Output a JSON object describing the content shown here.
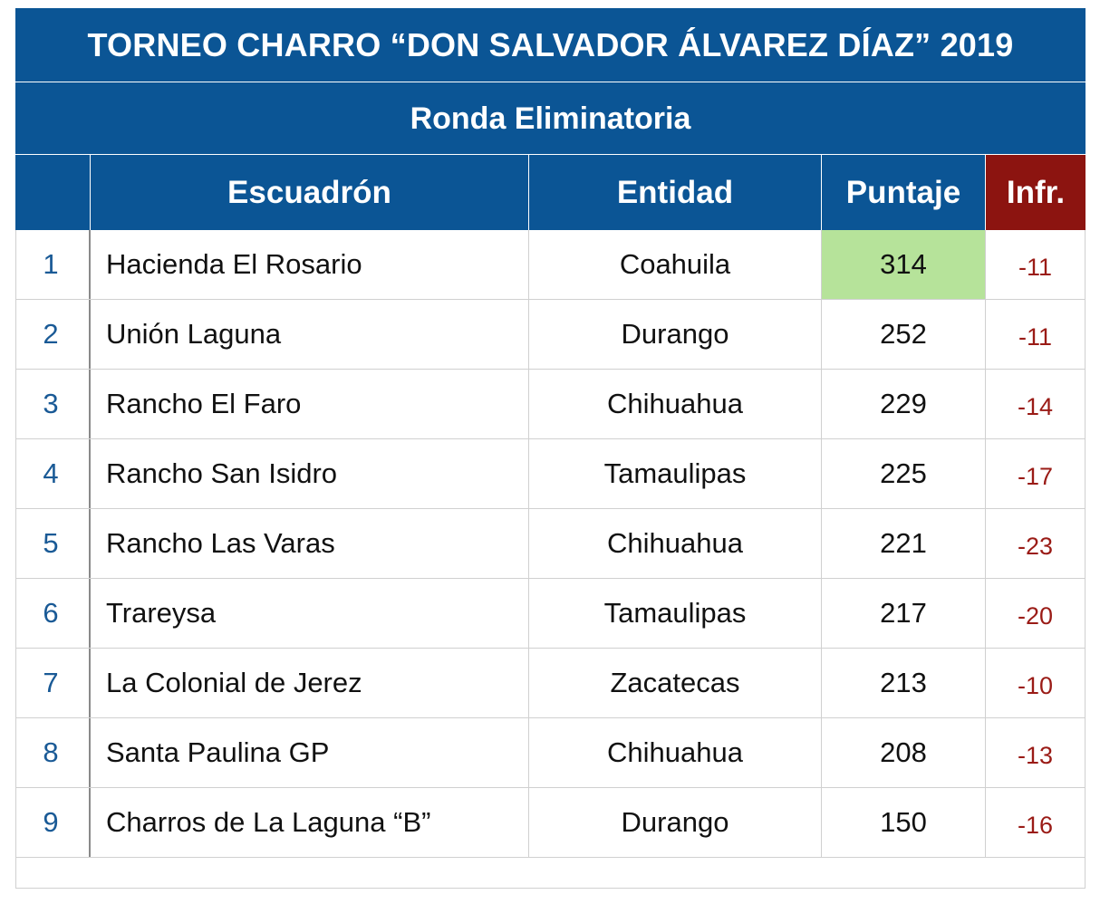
{
  "title": "TORNEO CHARRO “DON SALVADOR ÁLVAREZ DÍAZ” 2019",
  "subtitle": "Ronda Eliminatoria",
  "headers": {
    "rank": "",
    "team": "Escuadrón",
    "state": "Entidad",
    "score": "Puntaje",
    "infr": "Infr."
  },
  "colors": {
    "header_blue": "#0b5595",
    "infr_header_red": "#8c1410",
    "leader_highlight_green": "#b6e39a",
    "rank_text_blue": "#1a5a96",
    "infr_text_red": "#9a1b16"
  },
  "rows": [
    {
      "rank": "1",
      "team": "Hacienda El Rosario",
      "state": "Coahuila",
      "score": "314",
      "infr": "-11",
      "highlight": true
    },
    {
      "rank": "2",
      "team": "Unión Laguna",
      "state": "Durango",
      "score": "252",
      "infr": "-11",
      "highlight": false
    },
    {
      "rank": "3",
      "team": "Rancho El Faro",
      "state": "Chihuahua",
      "score": "229",
      "infr": "-14",
      "highlight": false
    },
    {
      "rank": "4",
      "team": "Rancho San Isidro",
      "state": "Tamaulipas",
      "score": "225",
      "infr": "-17",
      "highlight": false
    },
    {
      "rank": "5",
      "team": "Rancho Las Varas",
      "state": "Chihuahua",
      "score": "221",
      "infr": "-23",
      "highlight": false
    },
    {
      "rank": "6",
      "team": "Trareysa",
      "state": "Tamaulipas",
      "score": "217",
      "infr": "-20",
      "highlight": false
    },
    {
      "rank": "7",
      "team": "La Colonial de Jerez",
      "state": "Zacatecas",
      "score": "213",
      "infr": "-10",
      "highlight": false
    },
    {
      "rank": "8",
      "team": "Santa Paulina GP",
      "state": "Chihuahua",
      "score": "208",
      "infr": "-13",
      "highlight": false
    },
    {
      "rank": "9",
      "team": "Charros de La Laguna “B”",
      "state": "Durango",
      "score": "150",
      "infr": "-16",
      "highlight": false
    }
  ]
}
